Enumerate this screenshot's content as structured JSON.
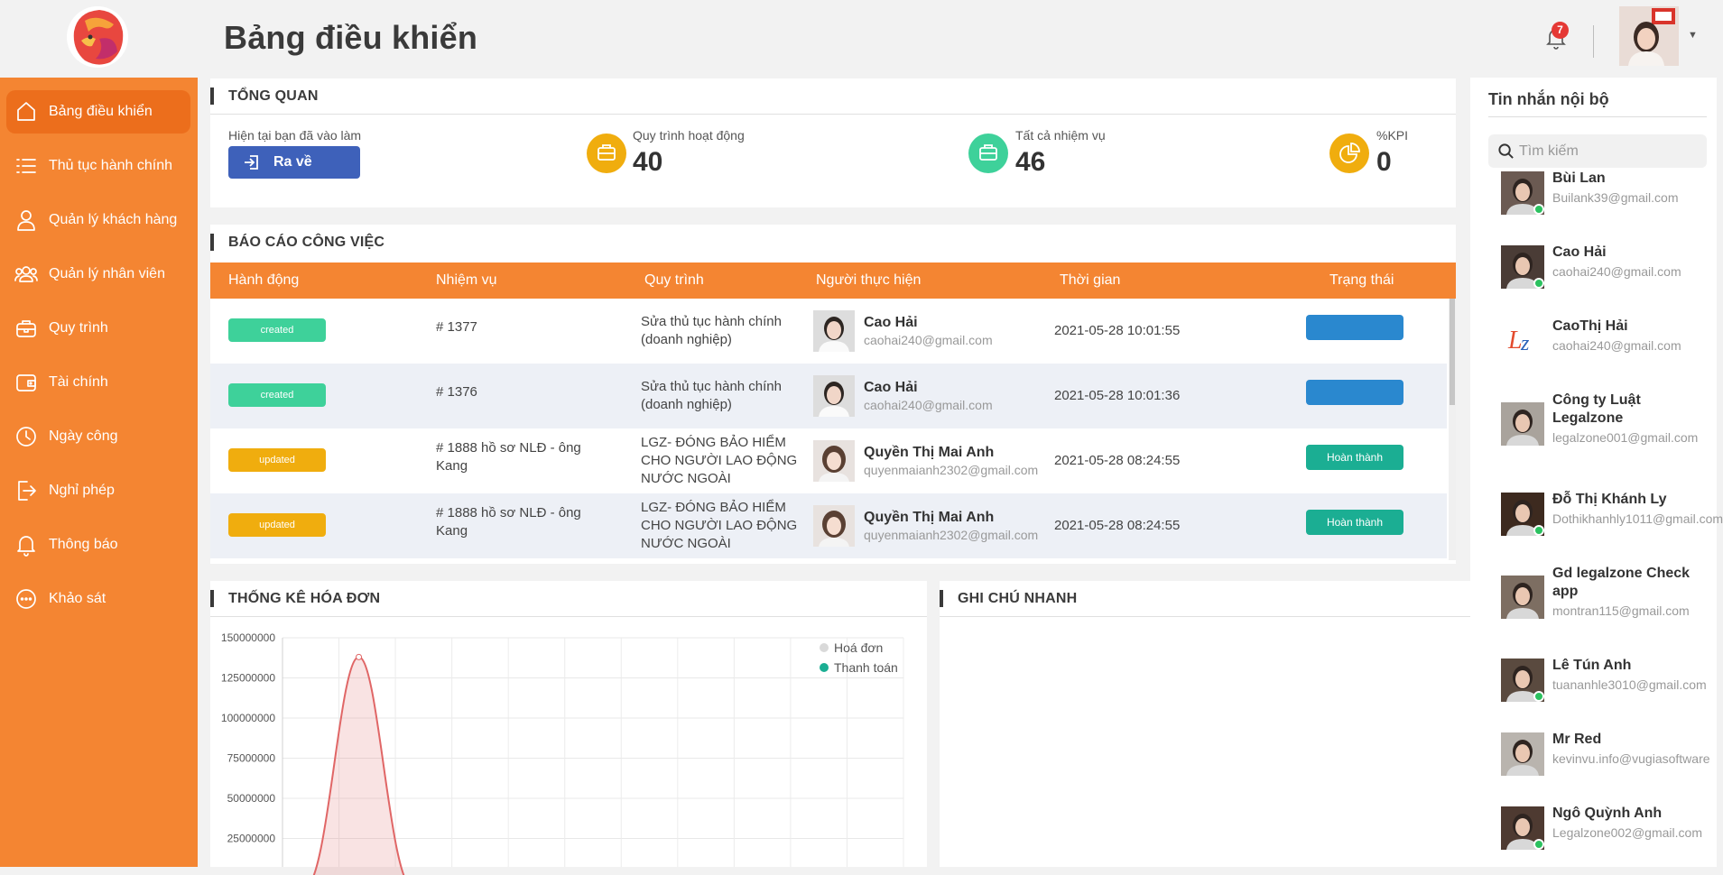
{
  "header": {
    "title": "Bảng điều khiển",
    "notification_count": "7"
  },
  "sidebar": {
    "items": [
      {
        "label": "Bảng điều khiển",
        "icon": "home-icon"
      },
      {
        "label": "Thủ tục hành chính",
        "icon": "list-icon"
      },
      {
        "label": "Quản lý khách hàng",
        "icon": "user-icon"
      },
      {
        "label": "Quản lý nhân viên",
        "icon": "users-icon"
      },
      {
        "label": "Quy trình",
        "icon": "briefcase-icon"
      },
      {
        "label": "Tài chính",
        "icon": "wallet-icon"
      },
      {
        "label": "Ngày công",
        "icon": "clock-icon"
      },
      {
        "label": "Nghỉ phép",
        "icon": "logout-icon"
      },
      {
        "label": "Thông báo",
        "icon": "bell-icon"
      },
      {
        "label": "Khảo sát",
        "icon": "chat-dots-icon"
      }
    ]
  },
  "overview": {
    "title": "TỔNG QUAN",
    "checkin_label": "Hiện tại bạn đã vào làm",
    "checkout_button": "Ra về",
    "processes_label": "Quy trình hoạt động",
    "processes_value": "40",
    "tasks_label": "Tất cả nhiệm vụ",
    "tasks_value": "46",
    "kpi_label": "%KPI",
    "kpi_value": "0"
  },
  "report": {
    "title": "BÁO CÁO CÔNG VIỆC",
    "columns": [
      "Hành động",
      "Nhiệm vụ",
      "Quy trình",
      "Người thực hiện",
      "Thời gian",
      "Trạng thái"
    ],
    "rows": [
      {
        "action": "created",
        "task": "# 1377",
        "process": "Sửa thủ tục hành chính (doanh nghiệp)",
        "person": "Cao Hải",
        "email": "caohai240@gmail.com",
        "time": "2021-05-28 10:01:55",
        "status": ""
      },
      {
        "action": "created",
        "task": "# 1376",
        "process": "Sửa thủ tục hành chính (doanh nghiệp)",
        "person": "Cao Hải",
        "email": "caohai240@gmail.com",
        "time": "2021-05-28 10:01:36",
        "status": ""
      },
      {
        "action": "updated",
        "task": "# 1888 hồ sơ NLĐ - ông Kang",
        "process": "LGZ- ĐÓNG BẢO HIỂM CHO NGƯỜI LAO ĐỘNG NƯỚC NGOÀI",
        "person": "Quyền Thị Mai Anh",
        "email": "quyenmaianh2302@gmail.com",
        "time": "2021-05-28 08:24:55",
        "status": "Hoàn thành"
      },
      {
        "action": "updated",
        "task": "# 1888 hồ sơ NLĐ - ông Kang",
        "process": "LGZ- ĐÓNG BẢO HIỂM CHO NGƯỜI LAO ĐỘNG NƯỚC NGOÀI",
        "person": "Quyền Thị Mai Anh",
        "email": "quyenmaianh2302@gmail.com",
        "time": "2021-05-28 08:24:55",
        "status": "Hoàn thành"
      }
    ]
  },
  "invoice_stats": {
    "title": "THỐNG KÊ HÓA ĐƠN"
  },
  "quick_note": {
    "title": "GHI CHÚ NHANH"
  },
  "chart_data": {
    "type": "area",
    "yticks": [
      "150000000",
      "125000000",
      "100000000",
      "75000000",
      "50000000",
      "25000000"
    ],
    "ylim": [
      0,
      150000000
    ],
    "legend": [
      "Hoá đơn",
      "Thanh toán"
    ],
    "legend_position": "top-right",
    "series": [
      {
        "name": "Hoá đơn",
        "color": "#e06666",
        "peak_value": 138000000
      },
      {
        "name": "Thanh toán",
        "color": "#1bae93"
      }
    ],
    "grid": true
  },
  "chat": {
    "title": "Tin nhắn nội bộ",
    "search_placeholder": "Tìm kiếm",
    "contacts": [
      {
        "name": "Bùi Lan",
        "email": "Builank39@gmail.com",
        "online": true
      },
      {
        "name": "Cao Hải",
        "email": "caohai240@gmail.com",
        "online": true
      },
      {
        "name": "CaoThị Hải",
        "email": "caohai240@gmail.com",
        "online": false
      },
      {
        "name": "Công ty Luật Legalzone",
        "email": "legalzone001@gmail.com",
        "online": false
      },
      {
        "name": "Đỗ Thị Khánh Ly",
        "email": "Dothikhanhly1011@gmail.com",
        "online": true
      },
      {
        "name": "Gd legalzone Check app",
        "email": "montran115@gmail.com",
        "online": false
      },
      {
        "name": "Lê Tún Anh",
        "email": "tuananhle3010@gmail.com",
        "online": true
      },
      {
        "name": "Mr Red",
        "email": "kevinvu.info@vugiasoftware",
        "online": false
      },
      {
        "name": "Ngô Quỳnh Anh",
        "email": "Legalzone002@gmail.com",
        "online": true
      }
    ]
  }
}
